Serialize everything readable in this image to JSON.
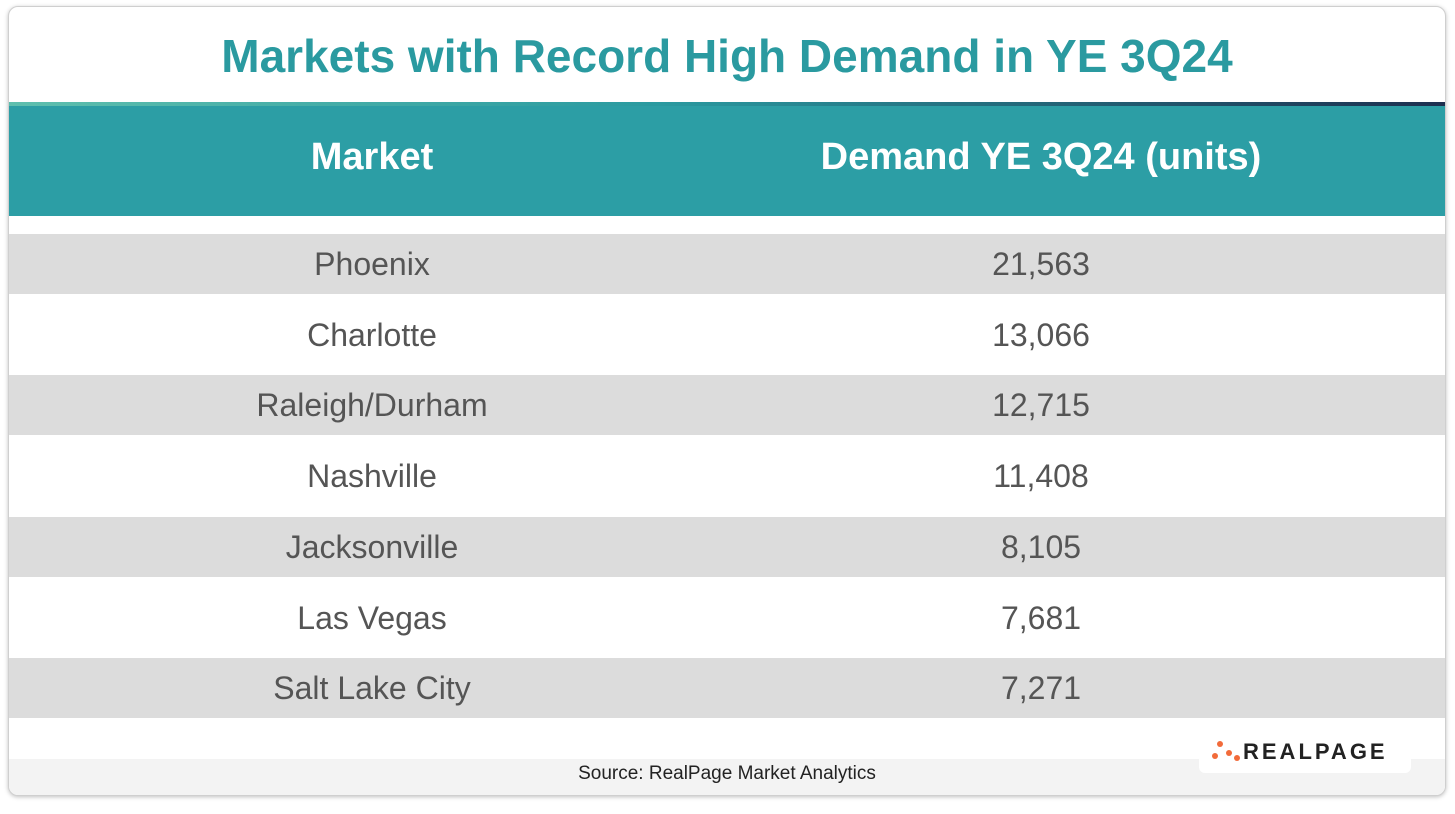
{
  "title": "Markets with Record High Demand in YE 3Q24",
  "table": {
    "header": [
      "Market",
      "Demand YE 3Q24 (units)"
    ],
    "rows": [
      [
        "Phoenix",
        "21,563"
      ],
      [
        "Charlotte",
        "13,066"
      ],
      [
        "Raleigh/Durham",
        "12,715"
      ],
      [
        "Nashville",
        "11,408"
      ],
      [
        "Jacksonville",
        "8,105"
      ],
      [
        "Las Vegas",
        "7,681"
      ],
      [
        "Salt Lake City",
        "7,271"
      ]
    ]
  },
  "source": "Source: RealPage Market Analytics",
  "logo": "REALPAGE"
}
